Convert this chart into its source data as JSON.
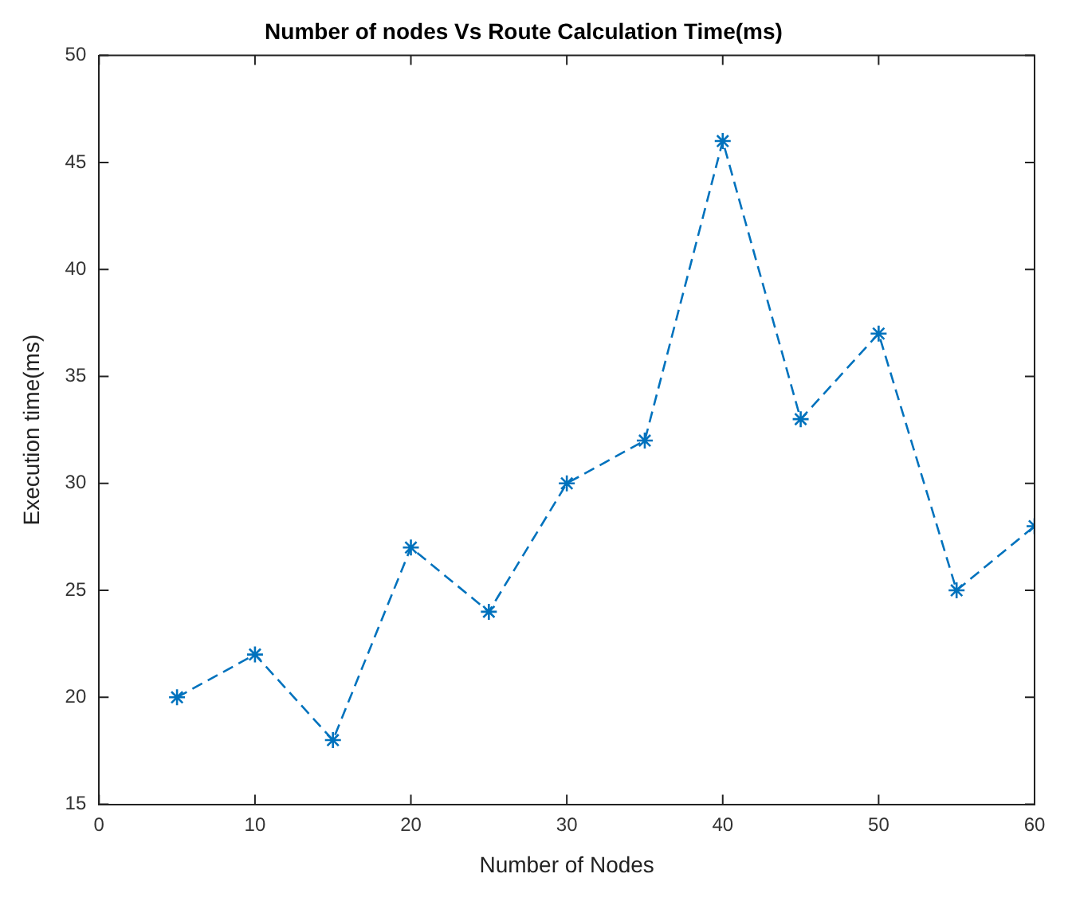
{
  "chart_data": {
    "type": "line",
    "title": "Number of nodes Vs Route Calculation Time(ms)",
    "xlabel": "Number of Nodes",
    "ylabel": "Execution time(ms)",
    "x": [
      5,
      10,
      15,
      20,
      25,
      30,
      35,
      40,
      45,
      50,
      55,
      60
    ],
    "series": [
      {
        "color": "#0072bd",
        "values": [
          20,
          22,
          18,
          27,
          24,
          30,
          32,
          46,
          33,
          37,
          25,
          28
        ]
      }
    ],
    "xlim": [
      0,
      60
    ],
    "xticks": [
      0,
      10,
      20,
      30,
      40,
      50,
      60
    ],
    "ylim": [
      15,
      50
    ],
    "yticks": [
      15,
      20,
      25,
      30,
      35,
      40,
      45,
      50
    ],
    "grid": false,
    "legend": false,
    "marker": "cross",
    "line_style": "dashed"
  }
}
